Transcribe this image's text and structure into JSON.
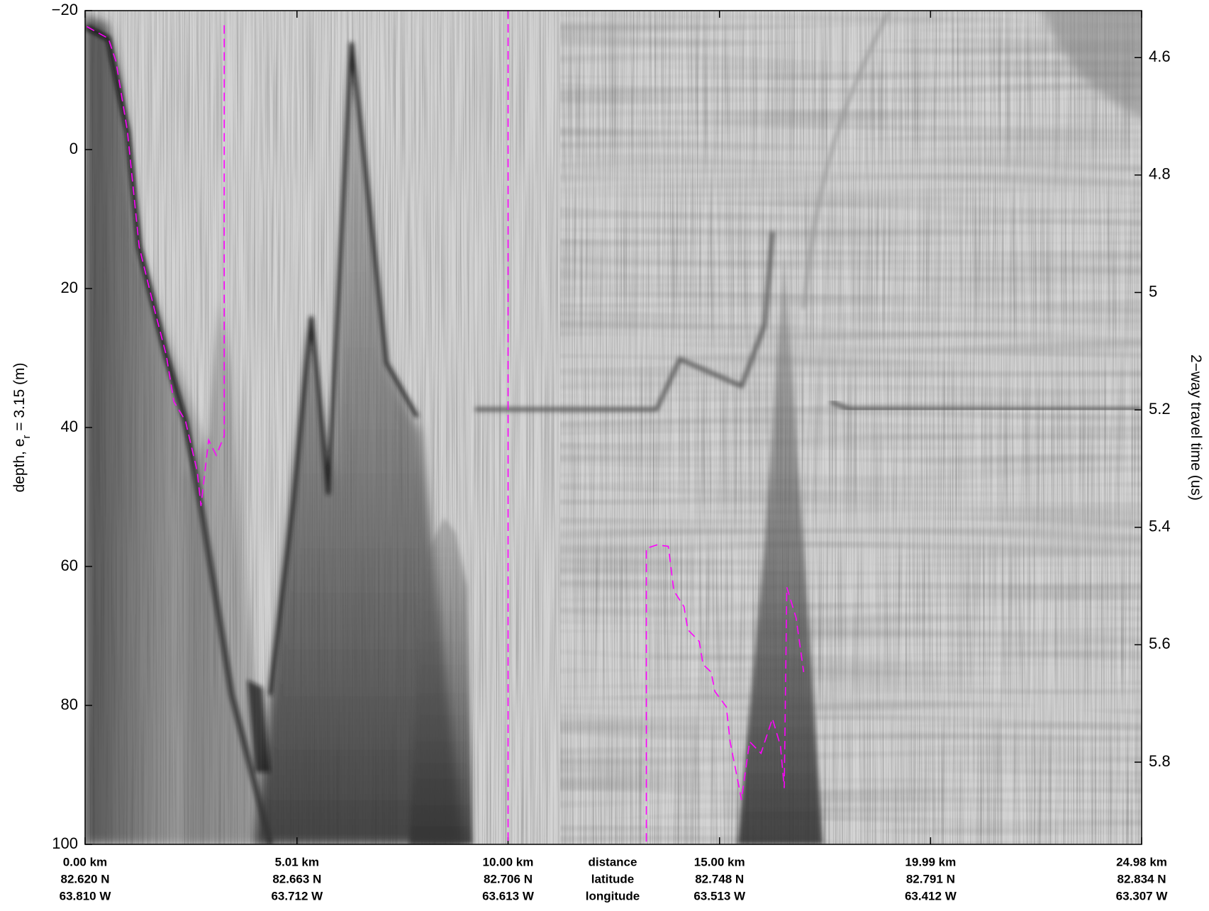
{
  "chart_data": {
    "type": "line",
    "ylabel": "depth, e",
    "ylabel_sub": "r",
    "ylabel_rest": " = 3.15 (m)",
    "y2label": "2−way travel time (us)",
    "row_labels": [
      "distance",
      "latitude",
      "longitude"
    ],
    "xlim": [
      0,
      24.98
    ],
    "xticks": [
      {
        "value": 0,
        "label": "0.00 km"
      },
      {
        "value": 5.01,
        "label": "5.01 km"
      },
      {
        "value": 10.0,
        "label": "10.00 km"
      },
      {
        "value": 15.0,
        "label": "15.00 km"
      },
      {
        "value": 19.99,
        "label": "19.99 km"
      },
      {
        "value": 24.98,
        "label": "24.98 km"
      }
    ],
    "latitude_labels": [
      "82.620 N",
      "82.663 N",
      "82.706 N",
      "82.748 N",
      "82.791 N",
      "82.834 N"
    ],
    "longitude_labels": [
      "63.810 W",
      "63.712 W",
      "63.613 W",
      "63.513 W",
      "63.412 W",
      "63.307 W"
    ],
    "ylim": [
      100,
      -20
    ],
    "yticks": [
      {
        "value": -20,
        "label": "−20"
      },
      0,
      20,
      40,
      60,
      80,
      100
    ],
    "y2lim": [
      5.94,
      4.52
    ],
    "y2ticks": [
      4.6,
      4.8,
      5,
      5.2,
      5.4,
      5.6,
      5.8
    ],
    "color": "#ff00ff",
    "x": [
      0.04,
      0.55,
      0.73,
      1.0,
      1.28,
      1.64,
      1.92,
      2.1,
      2.37,
      2.65,
      2.74,
      2.92,
      3.1,
      3.29,
      3.29,
      null,
      10.0,
      10.0,
      null,
      13.27,
      13.27,
      13.52,
      13.79,
      13.92,
      14.16,
      14.25,
      14.52,
      14.61,
      14.8,
      14.89,
      15.16,
      15.25,
      15.43,
      15.52,
      15.71,
      15.98,
      16.25,
      16.44,
      16.53,
      16.59,
      16.81,
      16.99
    ],
    "values": [
      -17.7,
      -16,
      -12.7,
      -2.7,
      14,
      23,
      29.6,
      36.3,
      39,
      46.3,
      51.3,
      41.8,
      44,
      41.2,
      -18,
      null,
      -20,
      100,
      null,
      99.6,
      57.4,
      56.9,
      57.1,
      63.5,
      65.8,
      69.1,
      70.8,
      74.1,
      75.2,
      78,
      80.2,
      85.2,
      90.8,
      93.6,
      85.2,
      86.9,
      81.9,
      85.8,
      91.9,
      63,
      67.4,
      75.2
    ]
  }
}
